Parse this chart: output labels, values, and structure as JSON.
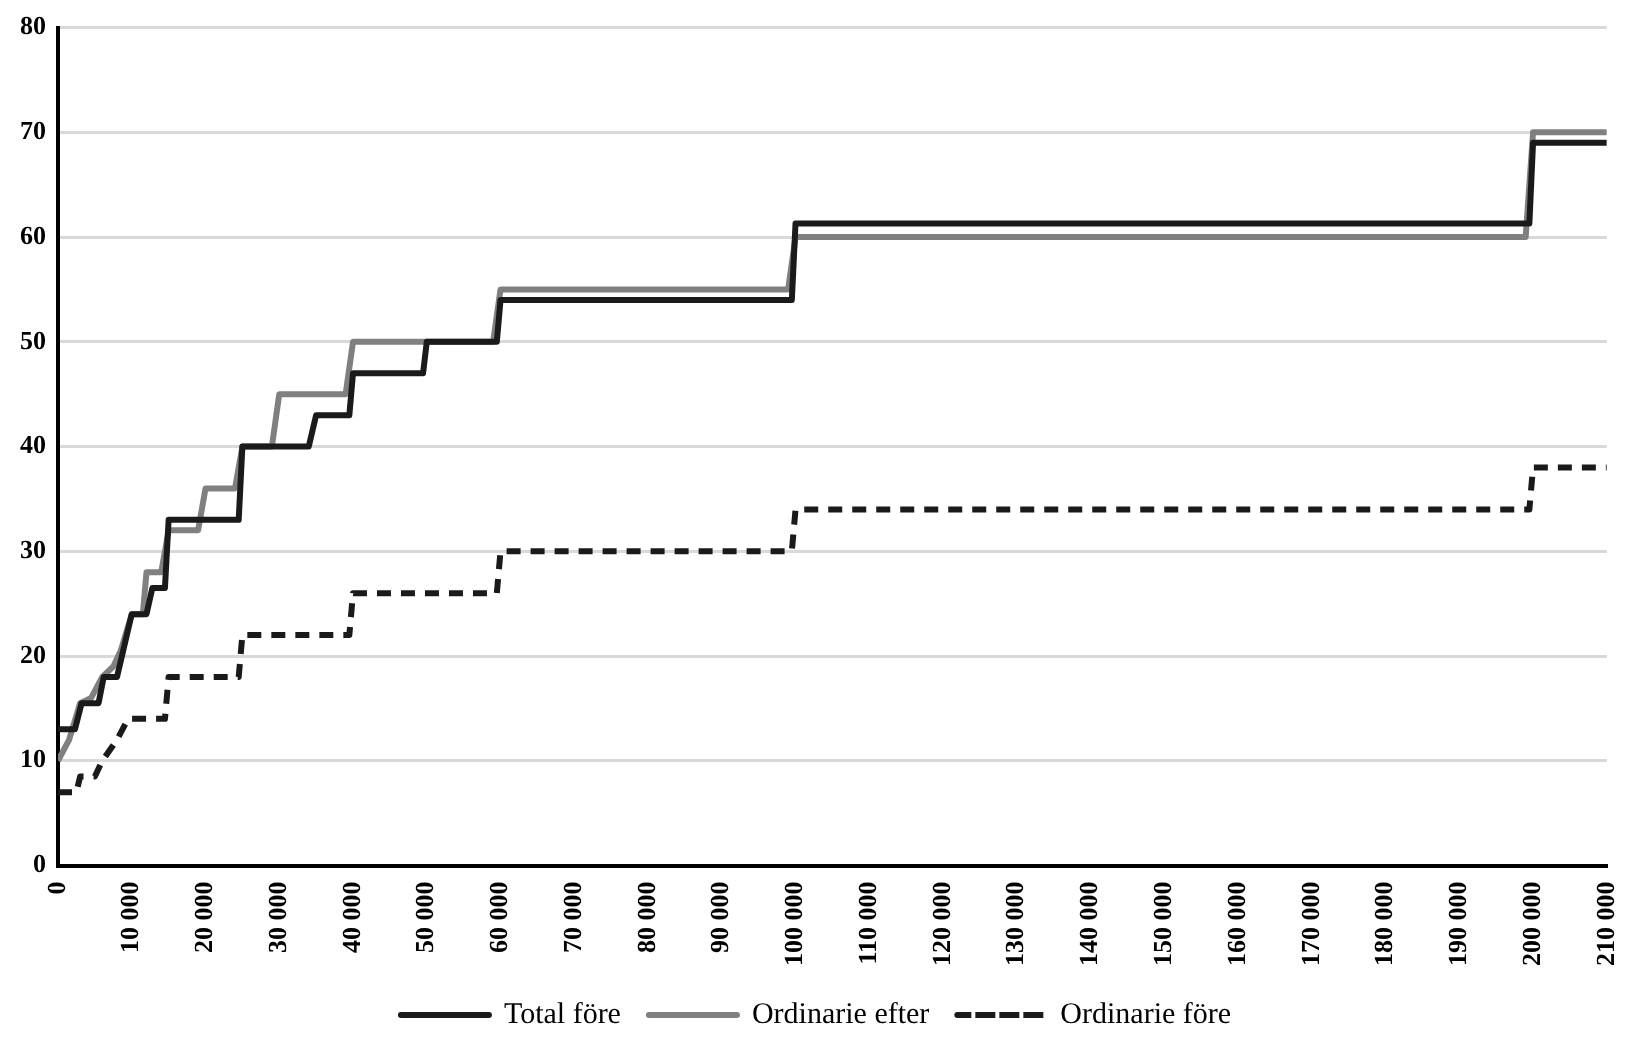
{
  "chart_data": {
    "type": "line",
    "xlim": [
      0,
      210000
    ],
    "xticks": [
      0,
      {
        "value": 10000,
        "label": "10 000"
      },
      {
        "value": 20000,
        "label": "20 000"
      },
      {
        "value": 30000,
        "label": "30 000"
      },
      {
        "value": 40000,
        "label": "40 000"
      },
      {
        "value": 50000,
        "label": "50 000"
      },
      {
        "value": 60000,
        "label": "60 000"
      },
      {
        "value": 70000,
        "label": "70 000"
      },
      {
        "value": 80000,
        "label": "80 000"
      },
      {
        "value": 90000,
        "label": "90 000"
      },
      {
        "value": 100000,
        "label": "100 000"
      },
      {
        "value": 110000,
        "label": "110 000"
      },
      {
        "value": 120000,
        "label": "120 000"
      },
      {
        "value": 130000,
        "label": "130 000"
      },
      {
        "value": 140000,
        "label": "140 000"
      },
      {
        "value": 150000,
        "label": "150 000"
      },
      {
        "value": 160000,
        "label": "160 000"
      },
      {
        "value": 170000,
        "label": "170 000"
      },
      {
        "value": 180000,
        "label": "180 000"
      },
      {
        "value": 190000,
        "label": "190 000"
      },
      {
        "value": 200000,
        "label": "200 000"
      },
      {
        "value": 210000,
        "label": "210 000"
      }
    ],
    "ylim": [
      0,
      80
    ],
    "yticks": [
      0,
      10,
      20,
      30,
      40,
      50,
      60,
      70,
      80
    ],
    "grid": "y",
    "legend": "bottom",
    "marker": "none",
    "series": [
      {
        "name": "Total före",
        "color": "#1a1a1a",
        "line_style": "solid",
        "x": [
          0,
          2300,
          3200,
          5500,
          6200,
          8000,
          10000,
          12000,
          12800,
          14500,
          15000,
          24500,
          25000,
          34000,
          35000,
          39500,
          40000,
          49500,
          50000,
          59500,
          60000,
          99500,
          100000,
          199500,
          200000,
          210000
        ],
        "values": [
          13,
          13,
          15.5,
          15.5,
          18,
          18,
          24,
          24,
          26.5,
          26.5,
          33,
          33,
          40,
          40,
          43,
          43,
          47,
          47,
          50,
          50,
          54,
          54,
          61.3,
          61.3,
          69,
          69
        ]
      },
      {
        "name": "Ordinarie efter",
        "color": "#808080",
        "line_style": "solid",
        "x": [
          0,
          1500,
          3000,
          4500,
          6000,
          7500,
          8500,
          10000,
          11500,
          12000,
          14000,
          15000,
          19000,
          20000,
          24000,
          25000,
          29000,
          30000,
          39000,
          40000,
          59000,
          60000,
          99000,
          100000,
          199000,
          200000,
          210000
        ],
        "values": [
          10,
          12,
          15.5,
          16,
          18,
          19,
          20.5,
          24,
          24,
          28,
          28,
          32,
          32,
          36,
          36,
          40,
          40,
          45,
          45,
          50,
          50,
          55,
          55,
          60,
          60,
          70,
          70
        ]
      },
      {
        "name": "Ordinarie före",
        "color": "#1a1a1a",
        "line_style": "dashed",
        "x": [
          0,
          2500,
          3000,
          5000,
          6000,
          8000,
          9500,
          14500,
          15000,
          24500,
          25000,
          39500,
          40000,
          59500,
          60000,
          99500,
          100000,
          199500,
          200000,
          210000
        ],
        "values": [
          7,
          7,
          8.5,
          8.5,
          10,
          12,
          14,
          14,
          18,
          18,
          22,
          22,
          26,
          26,
          30,
          30,
          34,
          34,
          38,
          38
        ]
      }
    ]
  }
}
